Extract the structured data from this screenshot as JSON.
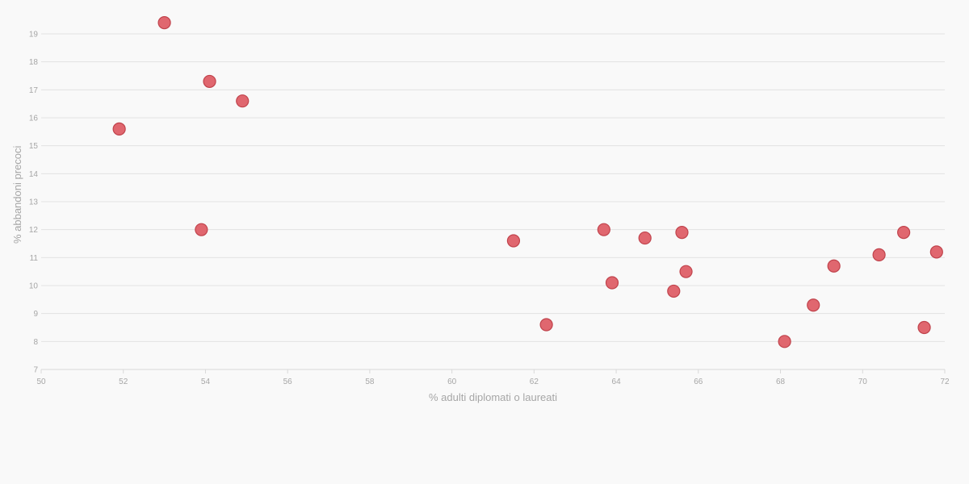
{
  "chart_data": {
    "type": "scatter",
    "title": "",
    "xlabel": "% adulti diplomati o laureati",
    "ylabel": "% abbandoni precoci",
    "xlim": [
      50,
      72
    ],
    "ylim": [
      7,
      19.5
    ],
    "x_ticks": [
      50,
      52,
      54,
      56,
      58,
      60,
      62,
      64,
      66,
      68,
      70,
      72
    ],
    "y_ticks": [
      7,
      8,
      9,
      10,
      11,
      12,
      13,
      14,
      15,
      16,
      17,
      18,
      19
    ],
    "grid": true,
    "marker_color": "#e0676f",
    "marker_edge_color": "#c0434c",
    "points": [
      {
        "x": 51.9,
        "y": 15.6
      },
      {
        "x": 53.0,
        "y": 19.4
      },
      {
        "x": 53.9,
        "y": 12.0
      },
      {
        "x": 54.1,
        "y": 17.3
      },
      {
        "x": 54.9,
        "y": 16.6
      },
      {
        "x": 61.5,
        "y": 11.6
      },
      {
        "x": 62.3,
        "y": 8.6
      },
      {
        "x": 63.7,
        "y": 12.0
      },
      {
        "x": 63.9,
        "y": 10.1
      },
      {
        "x": 64.7,
        "y": 11.7
      },
      {
        "x": 65.4,
        "y": 9.8
      },
      {
        "x": 65.6,
        "y": 11.9
      },
      {
        "x": 65.7,
        "y": 10.5
      },
      {
        "x": 68.1,
        "y": 8.0
      },
      {
        "x": 68.8,
        "y": 9.3
      },
      {
        "x": 69.3,
        "y": 10.7
      },
      {
        "x": 70.4,
        "y": 11.1
      },
      {
        "x": 71.0,
        "y": 11.9
      },
      {
        "x": 71.5,
        "y": 8.5
      },
      {
        "x": 71.8,
        "y": 11.2
      }
    ]
  }
}
